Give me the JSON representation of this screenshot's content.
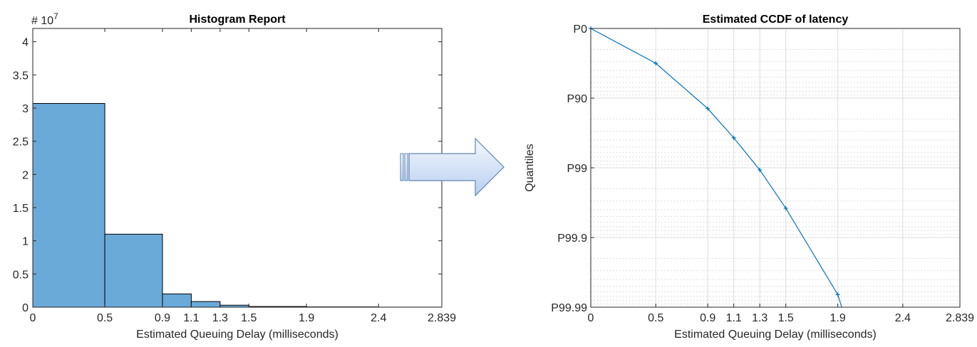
{
  "chart_data": [
    {
      "type": "bar",
      "title": "Histogram Report",
      "xlabel": "Estimated Queuing Delay (milliseconds)",
      "ylabel": "",
      "exponent_label": "# 10",
      "exponent_power": "7",
      "bin_edges": [
        0,
        0.5,
        0.9,
        1.1,
        1.3,
        1.5,
        1.9,
        2.4,
        2.839
      ],
      "x_tick_labels": [
        "0",
        "0.5",
        "0.9",
        "1.1",
        "1.3",
        "1.5",
        "1.9",
        "2.4",
        "2.839"
      ],
      "values": [
        30700000,
        11000000,
        2000000,
        850000,
        300000,
        100000,
        40000,
        10000
      ],
      "xlim": [
        0,
        2.839
      ],
      "ylim": [
        0,
        42000000
      ],
      "y_ticks": [
        0,
        5000000,
        10000000,
        15000000,
        20000000,
        25000000,
        30000000,
        35000000,
        40000000
      ],
      "y_tick_labels": [
        "0",
        "0.5",
        "1",
        "1.5",
        "2",
        "2.5",
        "3",
        "3.5",
        "4"
      ],
      "bar_color": "#6aaad9",
      "edge_color": "#000000",
      "grid": false
    },
    {
      "type": "line",
      "title": "Estimated CCDF of latency",
      "xlabel": "Estimated Queuing Delay (milliseconds)",
      "ylabel": "Quantiles",
      "x": [
        0,
        0.5,
        0.9,
        1.1,
        1.3,
        1.5,
        1.9,
        1.93
      ],
      "y": [
        0,
        0.5,
        1.15,
        1.57,
        2.03,
        2.58,
        3.82,
        4
      ],
      "marker_points": 7,
      "xlim": [
        0,
        2.839
      ],
      "x_ticks": [
        0,
        0.5,
        0.9,
        1.1,
        1.3,
        1.5,
        1.9,
        2.4,
        2.839
      ],
      "x_tick_labels": [
        "0",
        "0.5",
        "0.9",
        "1.1",
        "1.3",
        "1.5",
        "1.9",
        "2.4",
        "2.839"
      ],
      "y_scale": "-log10(1-quantile)",
      "ylim": [
        0,
        4
      ],
      "y_ticks": [
        0,
        1,
        2,
        3,
        4
      ],
      "y_tick_labels": [
        "P0",
        "P90",
        "P99",
        "P99.9",
        "P99.99"
      ],
      "line_color": "#0072bd",
      "grid": true,
      "minor_grid": true
    }
  ],
  "arrow": {
    "direction": "right",
    "fill": "#cfe0f6",
    "stroke": "#5f84b6"
  }
}
